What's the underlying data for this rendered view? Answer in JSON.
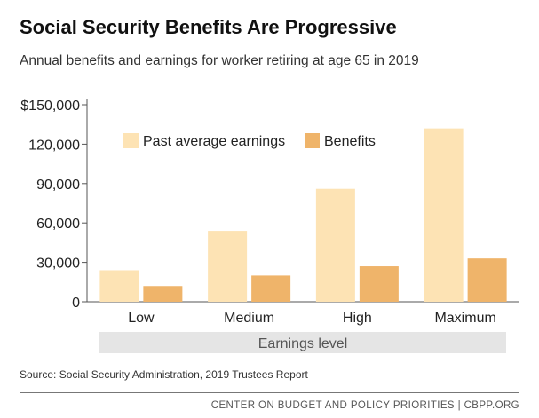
{
  "header": {
    "title": "Social Security Benefits Are Progressive",
    "subtitle": "Annual benefits and earnings for worker retiring at age 65 in 2019"
  },
  "footer": {
    "source": "Source: Social Security Administration, 2019 Trustees Report",
    "credit": "CENTER ON BUDGET AND POLICY PRIORITIES | CBPP.ORG"
  },
  "chart_data": {
    "type": "bar",
    "title": "Social Security Benefits Are Progressive",
    "subtitle": "Annual benefits and earnings for worker retiring at age 65 in 2019",
    "categories": [
      "Low",
      "Medium",
      "High",
      "Maximum"
    ],
    "series": [
      {
        "name": "Past average earnings",
        "values": [
          24000,
          54000,
          86000,
          132000
        ],
        "color": "#fde3b4"
      },
      {
        "name": "Benefits",
        "values": [
          12000,
          20000,
          27000,
          33000
        ],
        "color": "#efb46a"
      }
    ],
    "xlabel": "Earnings level",
    "ylabel": "",
    "ylim": [
      0,
      150000
    ],
    "yticks": [
      {
        "value": 0,
        "label": "0"
      },
      {
        "value": 30000,
        "label": "30,000"
      },
      {
        "value": 60000,
        "label": "60,000"
      },
      {
        "value": 90000,
        "label": "90,000"
      },
      {
        "value": 120000,
        "label": "120,000"
      },
      {
        "value": 150000,
        "label": "$150,000"
      }
    ],
    "legend": "top-left",
    "grid": false
  }
}
